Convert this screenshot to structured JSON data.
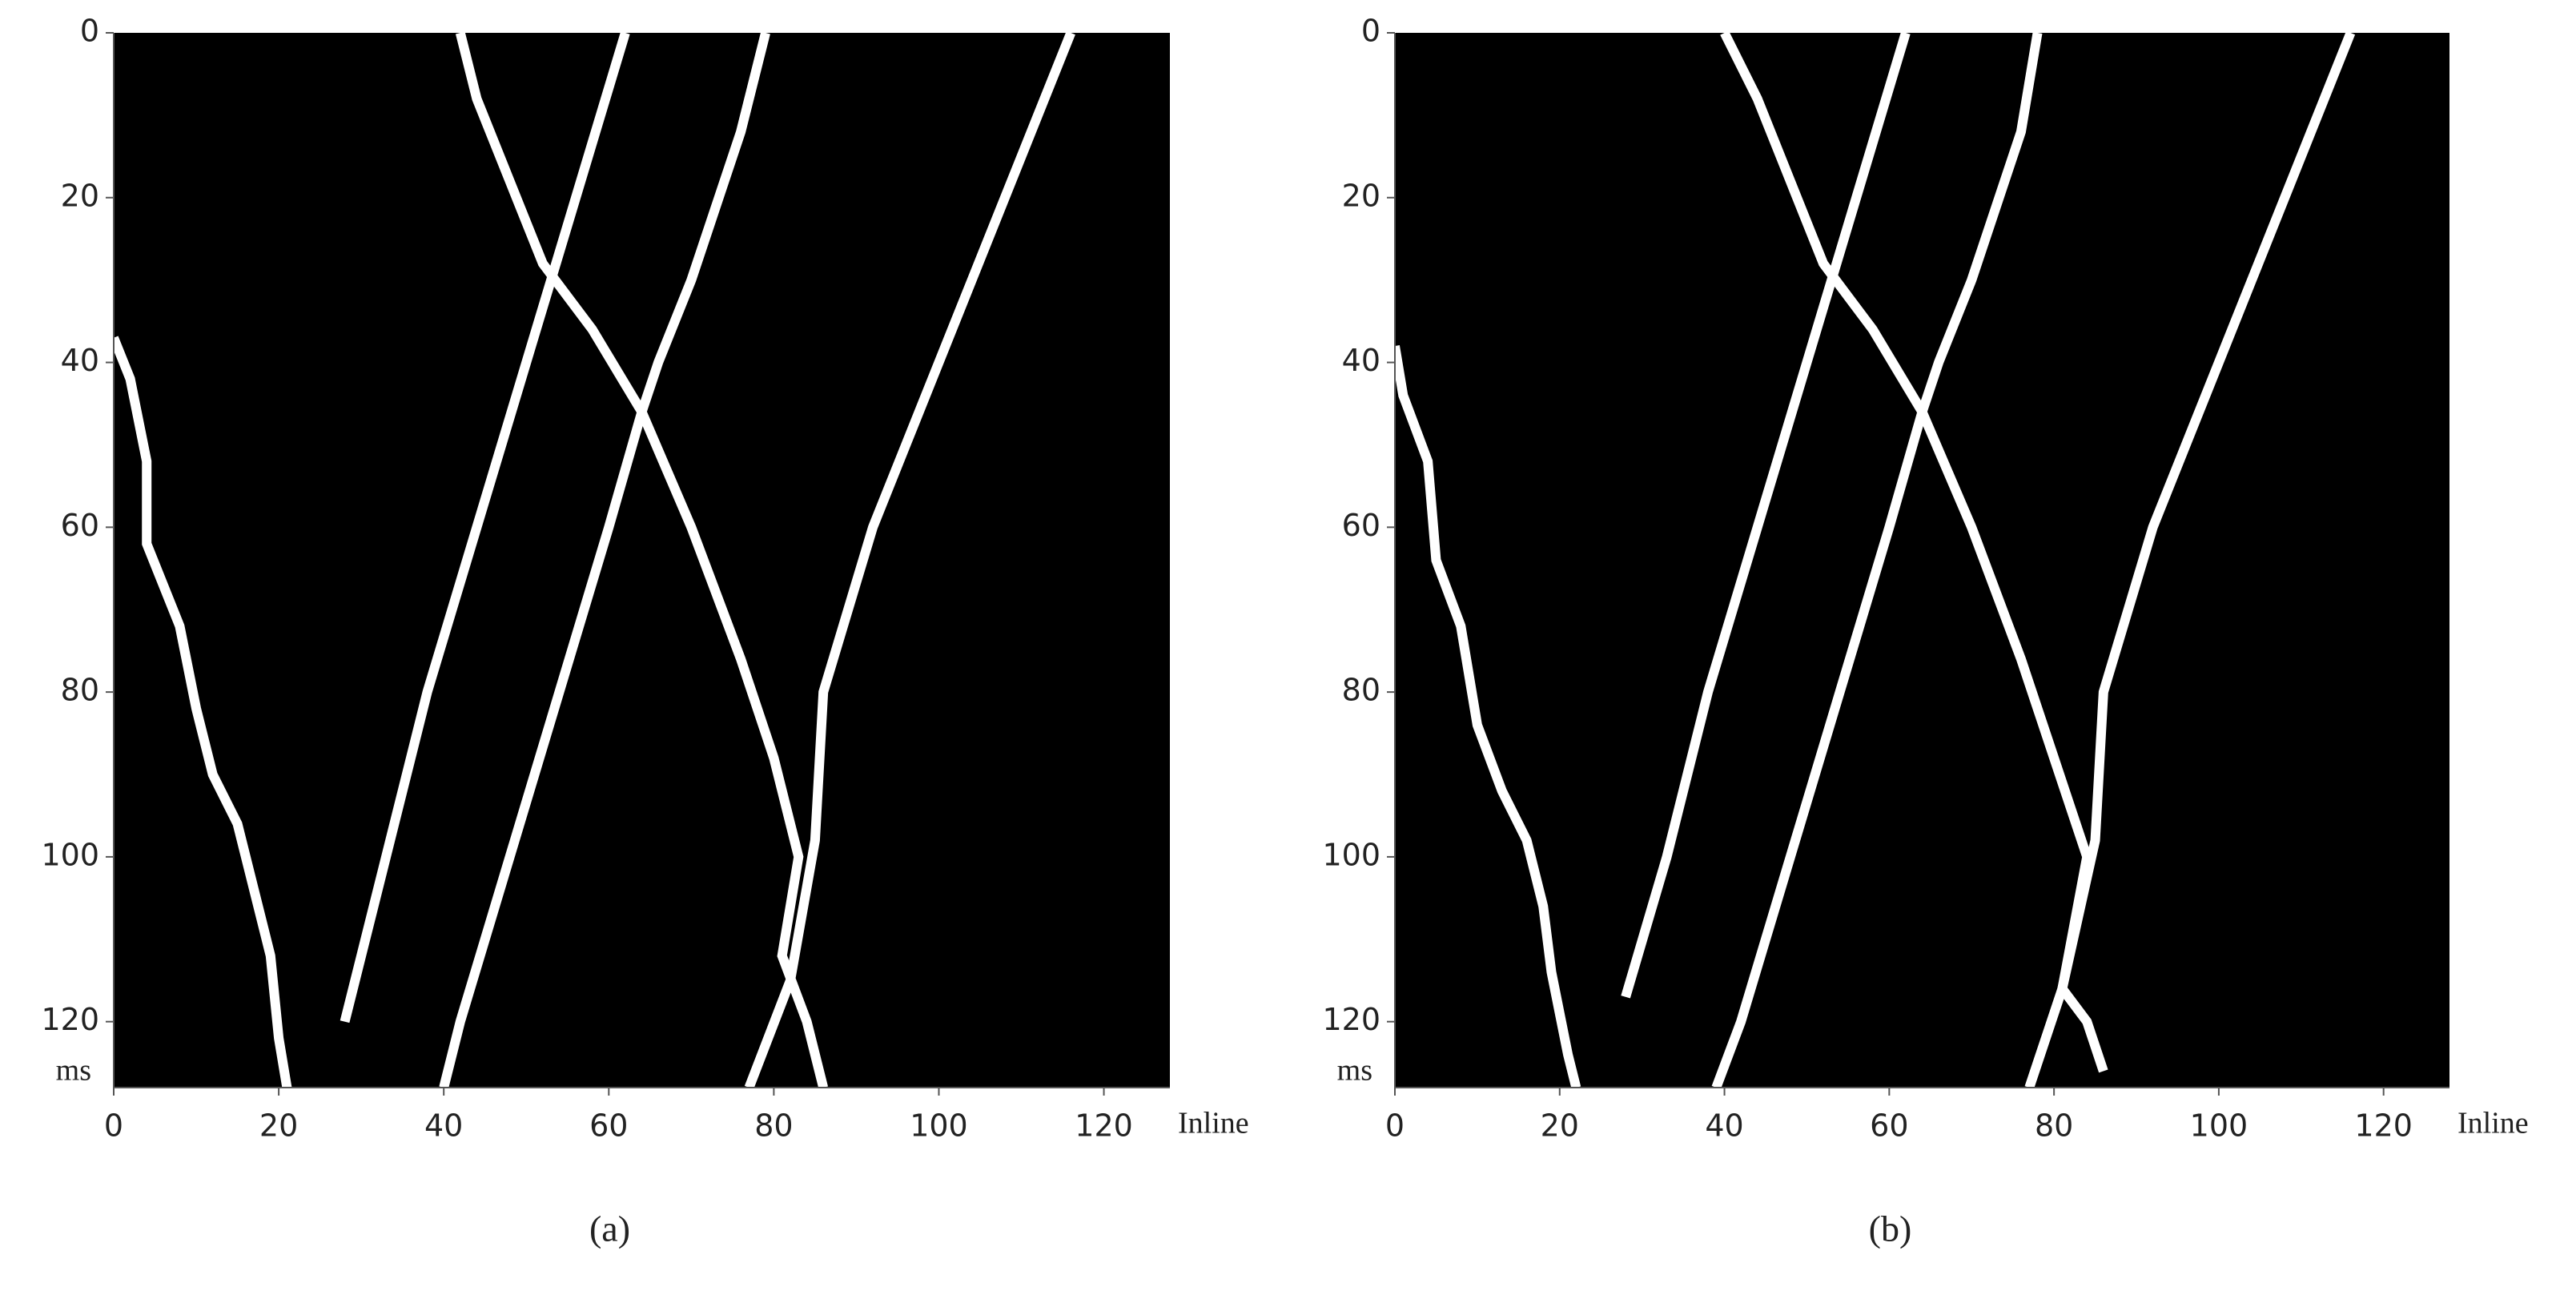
{
  "chart_data": [
    {
      "type": "line",
      "caption": "(a)",
      "xlabel": "Inline",
      "ylabel": "ms",
      "background": "#000000",
      "xlim": [
        0,
        128
      ],
      "ylim": [
        0,
        128
      ],
      "y_inverted": true,
      "xticks": [
        0,
        20,
        40,
        60,
        80,
        100,
        120
      ],
      "yticks": [
        0,
        20,
        40,
        60,
        80,
        100,
        120
      ],
      "series": [
        {
          "color": "#ffffff",
          "x": [
            0,
            2,
            4,
            4,
            8,
            10,
            12,
            15,
            17,
            19,
            20,
            21
          ],
          "values": [
            37,
            42,
            52,
            62,
            72,
            82,
            90,
            96,
            104,
            112,
            122,
            128
          ]
        },
        {
          "color": "#ffffff",
          "x": [
            62,
            56,
            50,
            44,
            38,
            33,
            28
          ],
          "values": [
            0,
            20,
            40,
            60,
            80,
            100,
            120
          ]
        },
        {
          "color": "#ffffff",
          "x": [
            42,
            44,
            48,
            52,
            58,
            64,
            70,
            76,
            80,
            83,
            81,
            84,
            86
          ],
          "values": [
            0,
            8,
            18,
            28,
            36,
            46,
            60,
            76,
            88,
            100,
            112,
            120,
            128
          ]
        },
        {
          "color": "#ffffff",
          "x": [
            79,
            76,
            70,
            66,
            64,
            60,
            54,
            48,
            42,
            40
          ],
          "values": [
            0,
            12,
            30,
            40,
            46,
            60,
            80,
            100,
            120,
            128
          ]
        },
        {
          "color": "#ffffff",
          "x": [
            116,
            112,
            104,
            96,
            92,
            86,
            85,
            82,
            77
          ],
          "values": [
            0,
            10,
            30,
            50,
            60,
            80,
            98,
            115,
            128
          ]
        }
      ]
    },
    {
      "type": "line",
      "caption": "(b)",
      "xlabel": "Inline",
      "ylabel": "ms",
      "background": "#000000",
      "xlim": [
        0,
        128
      ],
      "ylim": [
        0,
        128
      ],
      "y_inverted": true,
      "xticks": [
        0,
        20,
        40,
        60,
        80,
        100,
        120
      ],
      "yticks": [
        0,
        20,
        40,
        60,
        80,
        100,
        120
      ],
      "series": [
        {
          "color": "#ffffff",
          "x": [
            0,
            1,
            4,
            5,
            8,
            10,
            13,
            16,
            18,
            19,
            21,
            22
          ],
          "values": [
            38,
            44,
            52,
            64,
            72,
            84,
            92,
            98,
            106,
            114,
            124,
            128
          ]
        },
        {
          "color": "#ffffff",
          "x": [
            62,
            56,
            50,
            44,
            38,
            33,
            28
          ],
          "values": [
            0,
            20,
            40,
            60,
            80,
            100,
            117
          ]
        },
        {
          "color": "#ffffff",
          "x": [
            40,
            44,
            48,
            52,
            58,
            64,
            70,
            76,
            80,
            84,
            81,
            84,
            86
          ],
          "values": [
            0,
            8,
            18,
            28,
            36,
            46,
            60,
            76,
            88,
            100,
            116,
            120,
            126
          ]
        },
        {
          "color": "#ffffff",
          "x": [
            78,
            76,
            70,
            66,
            64,
            60,
            54,
            48,
            42,
            39
          ],
          "values": [
            0,
            12,
            30,
            40,
            46,
            60,
            80,
            100,
            120,
            128
          ]
        },
        {
          "color": "#ffffff",
          "x": [
            116,
            112,
            104,
            96,
            92,
            86,
            85,
            81,
            77
          ],
          "values": [
            0,
            10,
            30,
            50,
            60,
            80,
            98,
            116,
            128
          ]
        }
      ]
    }
  ]
}
